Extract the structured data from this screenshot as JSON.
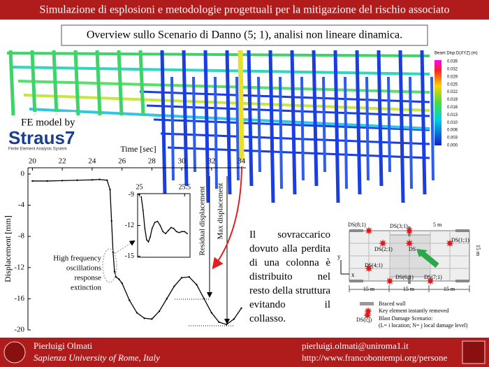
{
  "header": {
    "title": "Simulazione di esplosioni e metodologie progettuali per la mitigazione del rischio associato",
    "subtitle": "Overview sullo Scenario di Danno (5; 1), analisi non lineare dinamica."
  },
  "fe_model": {
    "caption": "FE model by",
    "logo": "Straus7",
    "logo_subtitle": "Finite Element Analysis System"
  },
  "colorbar": {
    "title": "Beam Disp:D(XYZ) (m)",
    "labels": [
      "0.035",
      "0.032",
      "0.029",
      "0.025",
      "0.022",
      "0.019",
      "0.016",
      "0.013",
      "0.010",
      "0.006",
      "0.003",
      "0.000"
    ]
  },
  "chart_data": [
    {
      "type": "line",
      "x_label": "Time [sec]",
      "y_label": "Displacement [mm]",
      "xaxis_position": "top",
      "color": "#000000",
      "x": [
        20,
        21,
        22,
        23,
        24,
        24.5,
        25,
        25.2,
        25.3,
        25.4,
        25.5,
        25.6,
        25.8,
        26,
        26.5,
        27,
        27.5,
        28,
        28.5,
        29,
        29.5,
        30,
        30.5,
        31,
        31.5,
        32,
        32.5,
        33,
        33.5,
        34
      ],
      "values": [
        -0.9,
        -0.9,
        -0.85,
        -0.8,
        -0.75,
        -0.7,
        -0.8,
        -2,
        -6,
        -10,
        -12.5,
        -13.2,
        -13.5,
        -14,
        -16.2,
        -17.8,
        -18.5,
        -18.6,
        -17.6,
        -16,
        -14.4,
        -13.3,
        -13.2,
        -14.2,
        -16,
        -17.8,
        -19,
        -19.3,
        -18.6,
        -17.2
      ],
      "xlim": [
        19.7,
        34.3
      ],
      "ylim": [
        -20,
        0.8
      ],
      "xticks": [
        20,
        22,
        24,
        26,
        28,
        30,
        32,
        34
      ],
      "yticks": [
        0,
        -4,
        -8,
        -12,
        -16,
        -20
      ],
      "annotations": {
        "oscillations": [
          "High frequency",
          "oscillations",
          "response",
          "extinction"
        ],
        "residual": "Residual displacement",
        "max": "Max displacement"
      }
    },
    {
      "type": "line",
      "xaxis_position": "top",
      "color": "#000000",
      "x": [
        25.02,
        25.04,
        25.06,
        25.08,
        25.1,
        25.12,
        25.14,
        25.17,
        25.2,
        25.23,
        25.26,
        25.29,
        25.32,
        25.35,
        25.38,
        25.41,
        25.44,
        25.47,
        25.5,
        25.53
      ],
      "values": [
        -9.2,
        -10.5,
        -12.3,
        -13.4,
        -13.6,
        -13.1,
        -12.3,
        -11.7,
        -11.6,
        -12,
        -12.6,
        -12.8,
        -12.5,
        -12.2,
        -12.3,
        -12.6,
        -12.7,
        -12.6,
        -12.6,
        -12.8
      ],
      "xlim": [
        24.98,
        25.56
      ],
      "ylim": [
        -15.1,
        -8.9
      ],
      "xticks": [
        25,
        25.5
      ],
      "yticks": [
        -9,
        -12,
        -15
      ]
    }
  ],
  "note": "Il sovraccarico dovuto alla perdita di una colonna è distribuito nel resto della struttura evitando il collasso.",
  "floor_plan": {
    "labels": [
      "DS(8;1)",
      "DS(3;1)",
      "DS(2;1)",
      "DS",
      "DS(1;1)",
      "DS(4;1)",
      "DS(6;1)",
      "DS(7;1)"
    ],
    "dim_top": "5 m",
    "dim_side": "15 m",
    "dims_bottom": [
      "15 m",
      "15 m",
      "15 m"
    ],
    "axis_x": "x",
    "axis_y": "y",
    "legend": {
      "braced_wall": "Braced wall",
      "key_element": "Key element instantly removed",
      "scenario_symbol": "DS(i;j)",
      "scenario_title": "Blast Damage  Scenario:",
      "scenario_note": "(L= i location; N= j local damage level)"
    }
  },
  "footer": {
    "name": "Pierluigi  Olmati",
    "affiliation": "Sapienza University of Rome, Italy",
    "email": "pierluigi.olmati@uniroma1.it",
    "url": "http://www.francobontempi.org/persone"
  }
}
